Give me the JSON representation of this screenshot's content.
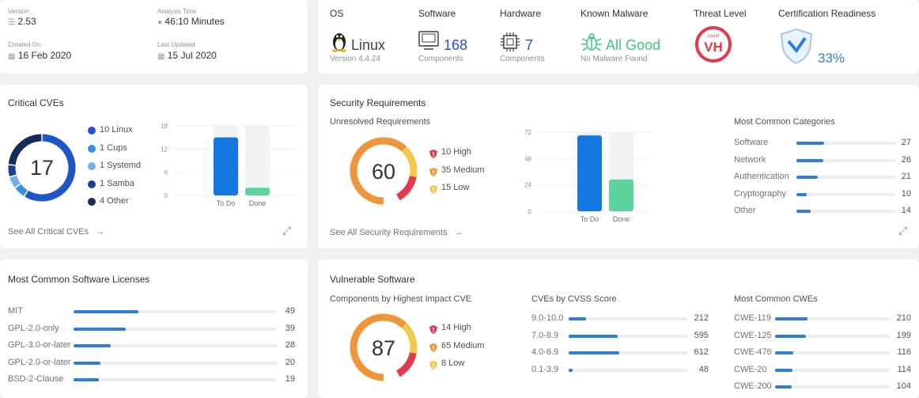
{
  "info": {
    "version_label": "Version",
    "version": "2.53",
    "analysis_label": "Analysis Time",
    "analysis": "46:10 Minutes",
    "created_label": "Created On",
    "created": "16 Feb 2020",
    "updated_label": "Last Updated",
    "updated": "15 Jul 2020"
  },
  "summary": {
    "os": {
      "label": "OS",
      "value": "Linux",
      "sub": "Version 4.4.24"
    },
    "software": {
      "label": "Software",
      "value": "168",
      "sub": "Components"
    },
    "hardware": {
      "label": "Hardware",
      "value": "7",
      "sub": "Components"
    },
    "malware": {
      "label": "Known Malware",
      "value": "All Good",
      "sub": "No Malware Found"
    },
    "threat": {
      "label": "Threat Level",
      "badge_small": "Level",
      "badge": "VH"
    },
    "cert": {
      "label": "Certification Readiness",
      "value": "33%"
    }
  },
  "critical_cves": {
    "title": "Critical CVEs",
    "total": "17",
    "legend": [
      {
        "label": "10 Linux",
        "value": 10,
        "color": "#1e56c8"
      },
      {
        "label": "1 Cups",
        "value": 1,
        "color": "#3d8fe6"
      },
      {
        "label": "1 Systemd",
        "value": 1,
        "color": "#6fb0f0"
      },
      {
        "label": "1 Samba",
        "value": 1,
        "color": "#1a3f8f"
      },
      {
        "label": "4 Other",
        "value": 4,
        "color": "#142a5c"
      }
    ],
    "chart_data": {
      "type": "bar",
      "categories": [
        "To Do",
        "Done"
      ],
      "values": [
        15,
        2
      ],
      "yticks": [
        "18",
        "12",
        "6",
        "0"
      ],
      "ylim": [
        0,
        18
      ],
      "colors": [
        "#1677e0",
        "#5dd39e"
      ]
    },
    "link": "See All Critical CVEs"
  },
  "security": {
    "title": "Security Requirements",
    "sub": "Unresolved Requirements",
    "total": "60",
    "legend": [
      {
        "label": "10 High",
        "color": "#e23b4e"
      },
      {
        "label": "35 Medium",
        "color": "#f0963a"
      },
      {
        "label": "15 Low",
        "color": "#f2c94c"
      }
    ],
    "chart_data": {
      "type": "bar",
      "categories": [
        "To Do",
        "Done"
      ],
      "values": [
        69,
        29
      ],
      "yticks": [
        "72",
        "48",
        "24",
        "0"
      ],
      "ylim": [
        0,
        72
      ],
      "colors": [
        "#1677e0",
        "#5dd39e"
      ]
    },
    "categories_title": "Most Common Categories",
    "categories": [
      {
        "label": "Software",
        "value": "27",
        "frac": 1.0
      },
      {
        "label": "Network",
        "value": "26",
        "frac": 0.96
      },
      {
        "label": "Authentication",
        "value": "21",
        "frac": 0.78
      },
      {
        "label": "Cryptography",
        "value": "10",
        "frac": 0.37
      },
      {
        "label": "Other",
        "value": "14",
        "frac": 0.52
      }
    ],
    "link": "See All Security Requirements"
  },
  "licenses": {
    "title": "Most Common Software Licenses",
    "items": [
      {
        "label": "MIT",
        "value": "49",
        "frac": 1.0
      },
      {
        "label": "GPL-2.0-only",
        "value": "39",
        "frac": 0.8
      },
      {
        "label": "GPL-3.0-or-later",
        "value": "28",
        "frac": 0.57
      },
      {
        "label": "GPL-2.0-or-later",
        "value": "20",
        "frac": 0.41
      },
      {
        "label": "BSD-2-Clause",
        "value": "19",
        "frac": 0.39
      }
    ]
  },
  "vulnerable": {
    "title": "Vulnerable Software",
    "sub": "Components by Highest Impact CVE",
    "total": "87",
    "legend": [
      {
        "label": "14 High",
        "color": "#e23b4e"
      },
      {
        "label": "65 Medium",
        "color": "#f0963a"
      },
      {
        "label": "8 Low",
        "color": "#f2c94c"
      }
    ],
    "cvss_title": "CVEs by CVSS Score",
    "cvss": [
      {
        "label": "9.0-10.0",
        "value": "212",
        "frac": 0.35
      },
      {
        "label": "7.0-8.9",
        "value": "595",
        "frac": 0.97
      },
      {
        "label": "4.0-6.9",
        "value": "612",
        "frac": 1.0
      },
      {
        "label": "0.1-3.9",
        "value": "48",
        "frac": 0.08
      }
    ],
    "cwe_title": "Most Common CWEs",
    "cwes": [
      {
        "label": "CWE-119",
        "value": "210",
        "frac": 1.0
      },
      {
        "label": "CWE-125",
        "value": "199",
        "frac": 0.95
      },
      {
        "label": "CWE-476",
        "value": "116",
        "frac": 0.55
      },
      {
        "label": "CWE-20",
        "value": "114",
        "frac": 0.54
      },
      {
        "label": "CWE-200",
        "value": "104",
        "frac": 0.5
      }
    ]
  }
}
